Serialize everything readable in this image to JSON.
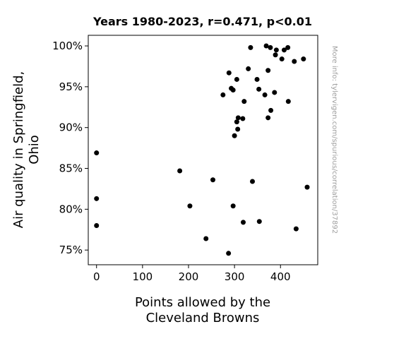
{
  "chart_data": {
    "type": "scatter",
    "title": "Years 1980-2023, r=0.471, p<0.01",
    "xlabel_lines": [
      "Points allowed by the",
      "Cleveland Browns"
    ],
    "ylabel_lines": [
      "Air quality in Springfield,",
      "Ohio"
    ],
    "xlim": [
      -18,
      481
    ],
    "ylim": [
      73.2,
      101.3
    ],
    "x_ticks": [
      0,
      100,
      200,
      300,
      400
    ],
    "y_ticks": [
      75,
      80,
      85,
      90,
      95,
      100
    ],
    "y_tick_suffix": "%",
    "grid": false,
    "marker_color": "#000000",
    "points": [
      {
        "x": 0,
        "y": 86.9
      },
      {
        "x": 0,
        "y": 81.3
      },
      {
        "x": 0,
        "y": 78.0
      },
      {
        "x": 181,
        "y": 84.7
      },
      {
        "x": 203,
        "y": 80.4
      },
      {
        "x": 238,
        "y": 76.4
      },
      {
        "x": 253,
        "y": 83.6
      },
      {
        "x": 275,
        "y": 94.0
      },
      {
        "x": 287,
        "y": 74.6
      },
      {
        "x": 288,
        "y": 96.7
      },
      {
        "x": 293,
        "y": 94.8
      },
      {
        "x": 297,
        "y": 94.6
      },
      {
        "x": 297,
        "y": 80.4
      },
      {
        "x": 300,
        "y": 89.0
      },
      {
        "x": 305,
        "y": 95.9
      },
      {
        "x": 305,
        "y": 90.7
      },
      {
        "x": 307,
        "y": 89.8
      },
      {
        "x": 308,
        "y": 91.2
      },
      {
        "x": 318,
        "y": 91.1
      },
      {
        "x": 319,
        "y": 78.4
      },
      {
        "x": 321,
        "y": 93.2
      },
      {
        "x": 330,
        "y": 97.2
      },
      {
        "x": 335,
        "y": 99.8
      },
      {
        "x": 339,
        "y": 83.4
      },
      {
        "x": 349,
        "y": 95.9
      },
      {
        "x": 353,
        "y": 94.7
      },
      {
        "x": 354,
        "y": 78.5
      },
      {
        "x": 366,
        "y": 94.0
      },
      {
        "x": 369,
        "y": 100.0
      },
      {
        "x": 373,
        "y": 97.0
      },
      {
        "x": 373,
        "y": 91.2
      },
      {
        "x": 378,
        "y": 99.8
      },
      {
        "x": 379,
        "y": 92.1
      },
      {
        "x": 387,
        "y": 94.3
      },
      {
        "x": 389,
        "y": 98.9
      },
      {
        "x": 391,
        "y": 99.5
      },
      {
        "x": 403,
        "y": 98.4
      },
      {
        "x": 408,
        "y": 99.5
      },
      {
        "x": 416,
        "y": 99.8
      },
      {
        "x": 417,
        "y": 93.2
      },
      {
        "x": 430,
        "y": 98.1
      },
      {
        "x": 434,
        "y": 77.6
      },
      {
        "x": 450,
        "y": 98.4
      },
      {
        "x": 458,
        "y": 82.7
      }
    ]
  },
  "credit": "More info: tylervigen.com/spurious/correlation/37892"
}
